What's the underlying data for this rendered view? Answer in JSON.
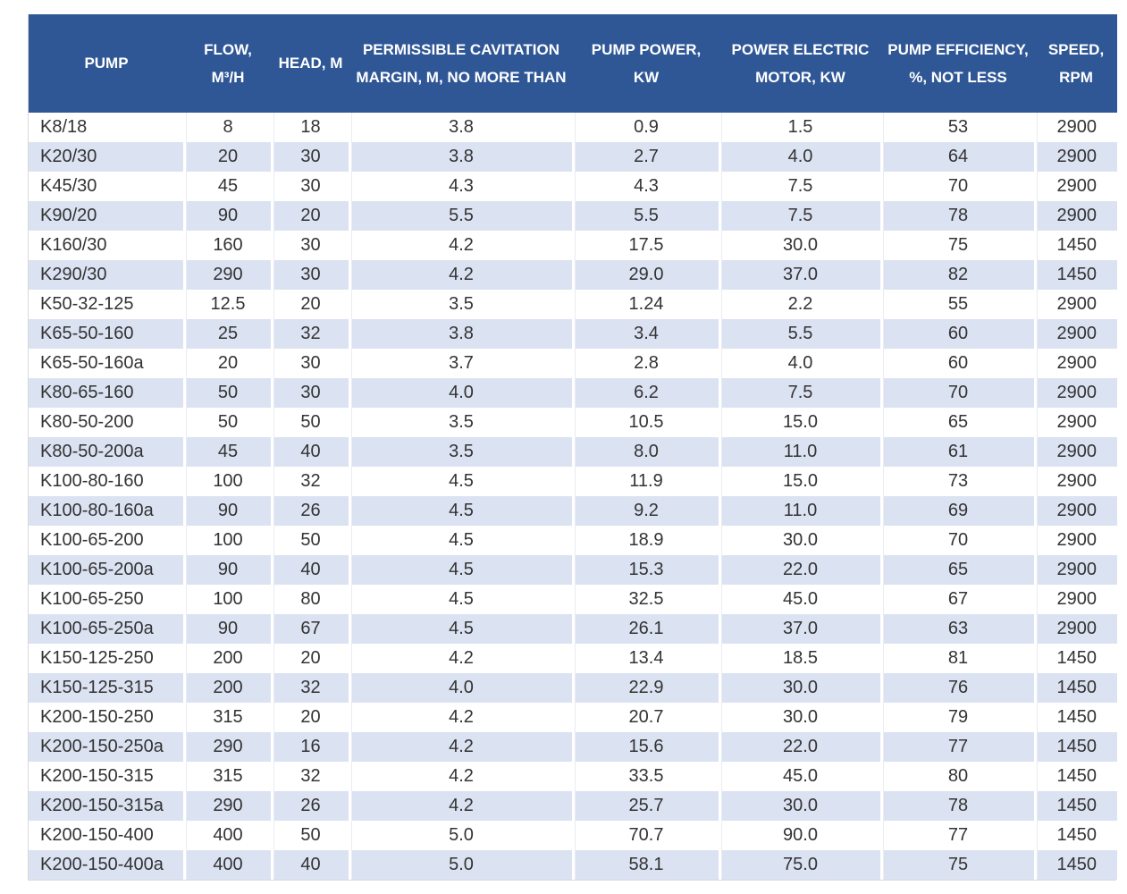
{
  "colors": {
    "header_bg": "#2f5796",
    "header_text": "#ffffff",
    "stripe_bg": "#dbe2f2",
    "body_text": "#333333"
  },
  "table": {
    "title": "pump-specifications-table",
    "columns": [
      {
        "key": "pump",
        "label": "PUMP"
      },
      {
        "key": "flow",
        "label": "FLOW, M³/H"
      },
      {
        "key": "head",
        "label": "HEAD, M"
      },
      {
        "key": "cavitation",
        "label": "PERMISSIBLE CAVITATION MARGIN, M, NO MORE THAN"
      },
      {
        "key": "pump_power",
        "label": "PUMP POWER, KW"
      },
      {
        "key": "motor_power",
        "label": "POWER ELECTRIC MOTOR, KW"
      },
      {
        "key": "efficiency",
        "label": "PUMP EFFICIENCY, %, NOT LESS"
      },
      {
        "key": "speed",
        "label": "SPEED, RPM"
      }
    ],
    "rows": [
      [
        "K8/18",
        "8",
        "18",
        "3.8",
        "0.9",
        "1.5",
        "53",
        "2900"
      ],
      [
        "K20/30",
        "20",
        "30",
        "3.8",
        "2.7",
        "4.0",
        "64",
        "2900"
      ],
      [
        "K45/30",
        "45",
        "30",
        "4.3",
        "4.3",
        "7.5",
        "70",
        "2900"
      ],
      [
        "K90/20",
        "90",
        "20",
        "5.5",
        "5.5",
        "7.5",
        "78",
        "2900"
      ],
      [
        "K160/30",
        "160",
        "30",
        "4.2",
        "17.5",
        "30.0",
        "75",
        "1450"
      ],
      [
        "K290/30",
        "290",
        "30",
        "4.2",
        "29.0",
        "37.0",
        "82",
        "1450"
      ],
      [
        "K50-32-125",
        "12.5",
        "20",
        "3.5",
        "1.24",
        "2.2",
        "55",
        "2900"
      ],
      [
        "K65-50-160",
        "25",
        "32",
        "3.8",
        "3.4",
        "5.5",
        "60",
        "2900"
      ],
      [
        "K65-50-160a",
        "20",
        "30",
        "3.7",
        "2.8",
        "4.0",
        "60",
        "2900"
      ],
      [
        "K80-65-160",
        "50",
        "30",
        "4.0",
        "6.2",
        "7.5",
        "70",
        "2900"
      ],
      [
        "K80-50-200",
        "50",
        "50",
        "3.5",
        "10.5",
        "15.0",
        "65",
        "2900"
      ],
      [
        "K80-50-200a",
        "45",
        "40",
        "3.5",
        "8.0",
        "11.0",
        "61",
        "2900"
      ],
      [
        "K100-80-160",
        "100",
        "32",
        "4.5",
        "11.9",
        "15.0",
        "73",
        "2900"
      ],
      [
        "K100-80-160a",
        "90",
        "26",
        "4.5",
        "9.2",
        "11.0",
        "69",
        "2900"
      ],
      [
        "K100-65-200",
        "100",
        "50",
        "4.5",
        "18.9",
        "30.0",
        "70",
        "2900"
      ],
      [
        "K100-65-200a",
        "90",
        "40",
        "4.5",
        "15.3",
        "22.0",
        "65",
        "2900"
      ],
      [
        "K100-65-250",
        "100",
        "80",
        "4.5",
        "32.5",
        "45.0",
        "67",
        "2900"
      ],
      [
        "K100-65-250a",
        "90",
        "67",
        "4.5",
        "26.1",
        "37.0",
        "63",
        "2900"
      ],
      [
        "K150-125-250",
        "200",
        "20",
        "4.2",
        "13.4",
        "18.5",
        "81",
        "1450"
      ],
      [
        "K150-125-315",
        "200",
        "32",
        "4.0",
        "22.9",
        "30.0",
        "76",
        "1450"
      ],
      [
        "K200-150-250",
        "315",
        "20",
        "4.2",
        "20.7",
        "30.0",
        "79",
        "1450"
      ],
      [
        "K200-150-250a",
        "290",
        "16",
        "4.2",
        "15.6",
        "22.0",
        "77",
        "1450"
      ],
      [
        "K200-150-315",
        "315",
        "32",
        "4.2",
        "33.5",
        "45.0",
        "80",
        "1450"
      ],
      [
        "K200-150-315a",
        "290",
        "26",
        "4.2",
        "25.7",
        "30.0",
        "78",
        "1450"
      ],
      [
        "K200-150-400",
        "400",
        "50",
        "5.0",
        "70.7",
        "90.0",
        "77",
        "1450"
      ],
      [
        "K200-150-400a",
        "400",
        "40",
        "5.0",
        "58.1",
        "75.0",
        "75",
        "1450"
      ]
    ]
  }
}
